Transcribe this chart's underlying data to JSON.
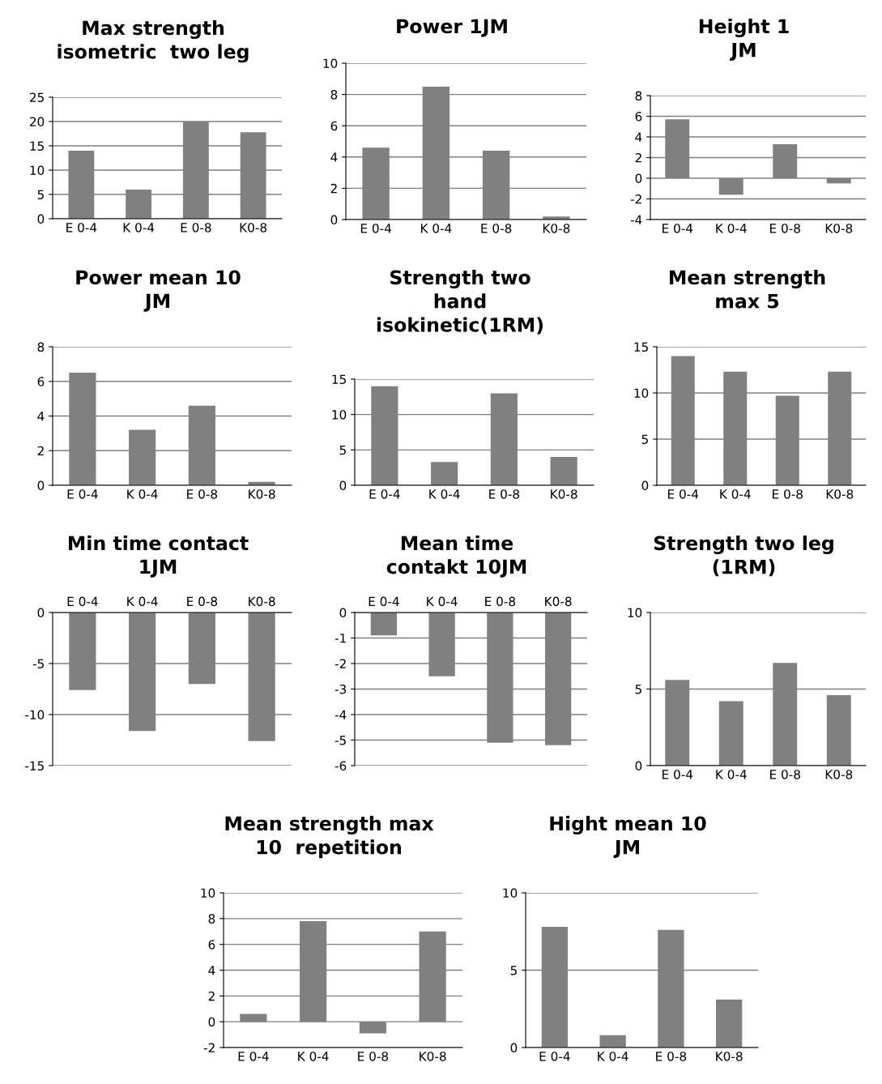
{
  "chart_data": [
    {
      "type": "bar",
      "title": "Max strength\nisometric  two leg",
      "categories": [
        "E 0-4",
        "K 0-4",
        "E 0-8",
        "K0-8"
      ],
      "values": [
        14,
        6,
        20,
        17.8
      ],
      "color": "#808080",
      "ylim": [
        0,
        25
      ],
      "yticks": [
        0,
        5,
        10,
        15,
        20,
        25
      ],
      "grid": "y"
    },
    {
      "type": "bar",
      "title": "Power 1JM",
      "categories": [
        "E 0-4",
        "K 0-4",
        "E 0-8",
        "K0-8"
      ],
      "values": [
        4.6,
        8.5,
        4.4,
        0.2
      ],
      "color": "#808080",
      "ylim": [
        0,
        10
      ],
      "yticks": [
        0,
        2,
        4,
        6,
        8,
        10
      ],
      "grid": "y"
    },
    {
      "type": "bar",
      "title": "Height 1\nJM",
      "categories": [
        "E 0-4",
        "K 0-4",
        "E 0-8",
        "K0-8"
      ],
      "values": [
        5.7,
        -1.6,
        3.3,
        -0.5
      ],
      "color": "#808080",
      "ylim": [
        -4,
        8
      ],
      "yticks": [
        -4,
        -2,
        0,
        2,
        4,
        6,
        8
      ],
      "grid": "y"
    },
    {
      "type": "bar",
      "title": "Power mean 10\nJM",
      "categories": [
        "E 0-4",
        "K 0-4",
        "E 0-8",
        "K0-8"
      ],
      "values": [
        6.5,
        3.2,
        4.6,
        0.2
      ],
      "color": "#808080",
      "ylim": [
        0,
        8
      ],
      "yticks": [
        0,
        2,
        4,
        6,
        8
      ],
      "grid": "y"
    },
    {
      "type": "bar",
      "title": "Strength two\nhand\nisokinetic(1RM)",
      "categories": [
        "E 0-4",
        "K 0-4",
        "E 0-8",
        "K0-8"
      ],
      "values": [
        14,
        3.3,
        13,
        4
      ],
      "color": "#808080",
      "ylim": [
        0,
        15
      ],
      "yticks": [
        0,
        5,
        10,
        15
      ],
      "grid": "y"
    },
    {
      "type": "bar",
      "title": "Mean strength\nmax 5",
      "categories": [
        "E 0-4",
        "K 0-4",
        "E 0-8",
        "K0-8"
      ],
      "values": [
        14,
        12.3,
        9.7,
        12.3
      ],
      "color": "#808080",
      "ylim": [
        0,
        15
      ],
      "yticks": [
        0,
        5,
        10,
        15
      ],
      "grid": "y"
    },
    {
      "type": "bar",
      "title": "Min time contact\n1JM",
      "categories": [
        "E 0-4",
        "K 0-4",
        "E 0-8",
        "K0-8"
      ],
      "values": [
        -7.6,
        -11.6,
        -7,
        -12.6
      ],
      "color": "#808080",
      "ylim": [
        -15,
        0
      ],
      "yticks": [
        -15,
        -10,
        -5,
        0
      ],
      "grid": "y"
    },
    {
      "type": "bar",
      "title": "Mean time\ncontakt 10JM",
      "categories": [
        "E 0-4",
        "K 0-4",
        "E 0-8",
        "K0-8"
      ],
      "values": [
        -0.9,
        -2.5,
        -5.1,
        -5.2
      ],
      "color": "#808080",
      "ylim": [
        -6,
        0
      ],
      "yticks": [
        -6,
        -5,
        -4,
        -3,
        -2,
        -1,
        0
      ],
      "grid": "y"
    },
    {
      "type": "bar",
      "title": "Strength two leg\n(1RM)",
      "categories": [
        "E 0-4",
        "K 0-4",
        "E 0-8",
        "K0-8"
      ],
      "values": [
        5.6,
        4.2,
        6.7,
        4.6
      ],
      "color": "#808080",
      "ylim": [
        0,
        10
      ],
      "yticks": [
        0,
        5,
        10
      ],
      "grid": "y"
    },
    {
      "type": "bar",
      "title": "Mean strength max\n10  repetition",
      "categories": [
        "E 0-4",
        "K 0-4",
        "E 0-8",
        "K0-8"
      ],
      "values": [
        0.6,
        7.8,
        -0.9,
        7.0
      ],
      "color": "#808080",
      "ylim": [
        -2,
        10
      ],
      "yticks": [
        -2,
        0,
        2,
        4,
        6,
        8,
        10
      ],
      "grid": "y"
    },
    {
      "type": "bar",
      "title": "Hight mean 10\nJM",
      "categories": [
        "E 0-4",
        "K 0-4",
        "E 0-8",
        "K0-8"
      ],
      "values": [
        7.8,
        0.8,
        7.6,
        3.1
      ],
      "color": "#808080",
      "ylim": [
        0,
        10
      ],
      "yticks": [
        0,
        5,
        10
      ],
      "grid": "y"
    }
  ]
}
